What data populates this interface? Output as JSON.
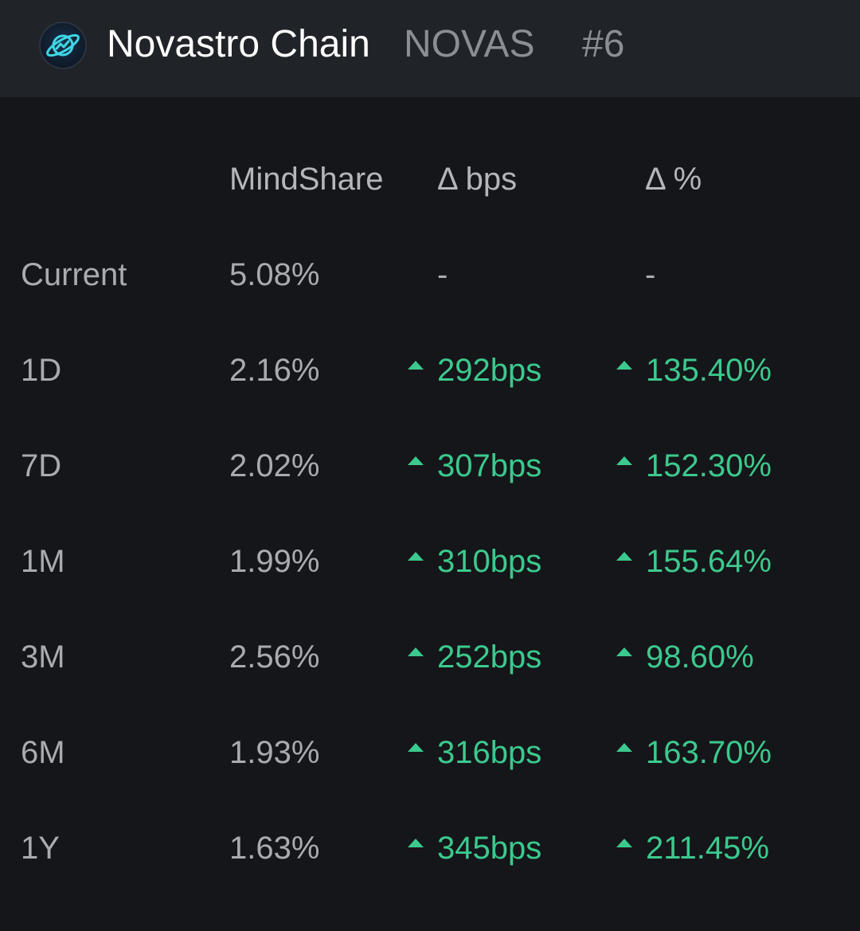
{
  "header": {
    "name": "Novastro Chain",
    "ticker": "NOVAS",
    "rank": "#6",
    "logo_icon": "planet-ring-icon"
  },
  "columns": {
    "mindshare": "MindShare",
    "delta_bps": "Δ bps",
    "delta_pct": "Δ %"
  },
  "colors": {
    "positive": "#3cc98e",
    "muted": "#a9abb0",
    "header_bg": "#202327",
    "page_bg": "#151619"
  },
  "rows": [
    {
      "period": "Current",
      "mindshare": "5.08%",
      "bps": "-",
      "pct": "-",
      "trend": "none"
    },
    {
      "period": "1D",
      "mindshare": "2.16%",
      "bps": "292bps",
      "pct": "135.40%",
      "trend": "up"
    },
    {
      "period": "7D",
      "mindshare": "2.02%",
      "bps": "307bps",
      "pct": "152.30%",
      "trend": "up"
    },
    {
      "period": "1M",
      "mindshare": "1.99%",
      "bps": "310bps",
      "pct": "155.64%",
      "trend": "up"
    },
    {
      "period": "3M",
      "mindshare": "2.56%",
      "bps": "252bps",
      "pct": "98.60%",
      "trend": "up"
    },
    {
      "period": "6M",
      "mindshare": "1.93%",
      "bps": "316bps",
      "pct": "163.70%",
      "trend": "up"
    },
    {
      "period": "1Y",
      "mindshare": "1.63%",
      "bps": "345bps",
      "pct": "211.45%",
      "trend": "up"
    }
  ]
}
